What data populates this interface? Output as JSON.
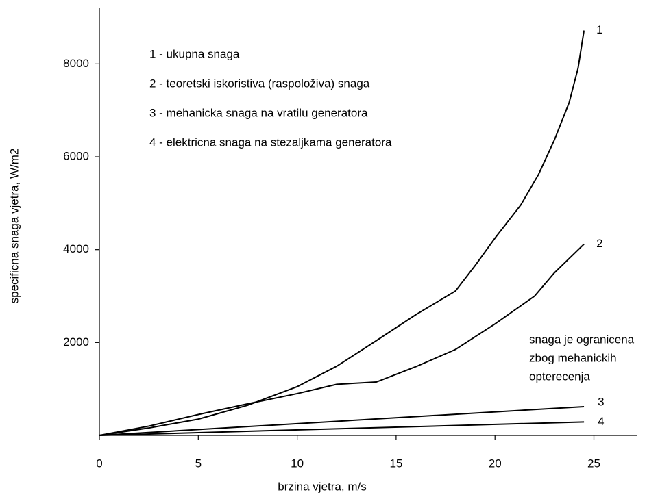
{
  "chart_data": {
    "type": "line",
    "xlabel": "brzina vjetra, m/s",
    "ylabel": "specificna snaga vjetra, W/m2",
    "legend": [
      "1 - ukupna snaga",
      "2 - teoretski iskoristiva (raspoloživa) snaga",
      "3 - mehanicka snaga na vratilu generatora",
      "4 - elektricna snaga na stezaljkama generatora"
    ],
    "annotation": [
      "snaga je ogranicena",
      "zbog mehanickih",
      "opterecenja"
    ],
    "xlim": [
      0,
      27.2
    ],
    "ylim": [
      0,
      9200
    ],
    "xticks": [
      0,
      5,
      10,
      15,
      20,
      25
    ],
    "yticks": [
      2000,
      4000,
      6000,
      8000
    ],
    "series": [
      {
        "name": "1",
        "color": "#000000",
        "x": [
          0,
          2.5,
          5,
          7.5,
          10,
          12,
          14,
          16,
          18,
          19,
          20,
          21.3,
          22.2,
          23,
          23.75,
          24.2,
          24.5
        ],
        "values": [
          0,
          160,
          350,
          650,
          1050,
          1490,
          2040,
          2600,
          3110,
          3660,
          4250,
          4960,
          5620,
          6360,
          7170,
          7910,
          8720
        ]
      },
      {
        "name": "2",
        "color": "#000000",
        "x": [
          0,
          2.5,
          5,
          7.5,
          10,
          12,
          14,
          16,
          18,
          20,
          22,
          23,
          24.5
        ],
        "values": [
          0,
          200,
          450,
          680,
          900,
          1100,
          1150,
          1480,
          1850,
          2400,
          3000,
          3500,
          4120
        ]
      },
      {
        "name": "3",
        "color": "#000000",
        "x": [
          0,
          24.5
        ],
        "values": [
          0,
          620
        ]
      },
      {
        "name": "4",
        "color": "#000000",
        "x": [
          0,
          24.5
        ],
        "values": [
          0,
          290
        ]
      }
    ]
  }
}
